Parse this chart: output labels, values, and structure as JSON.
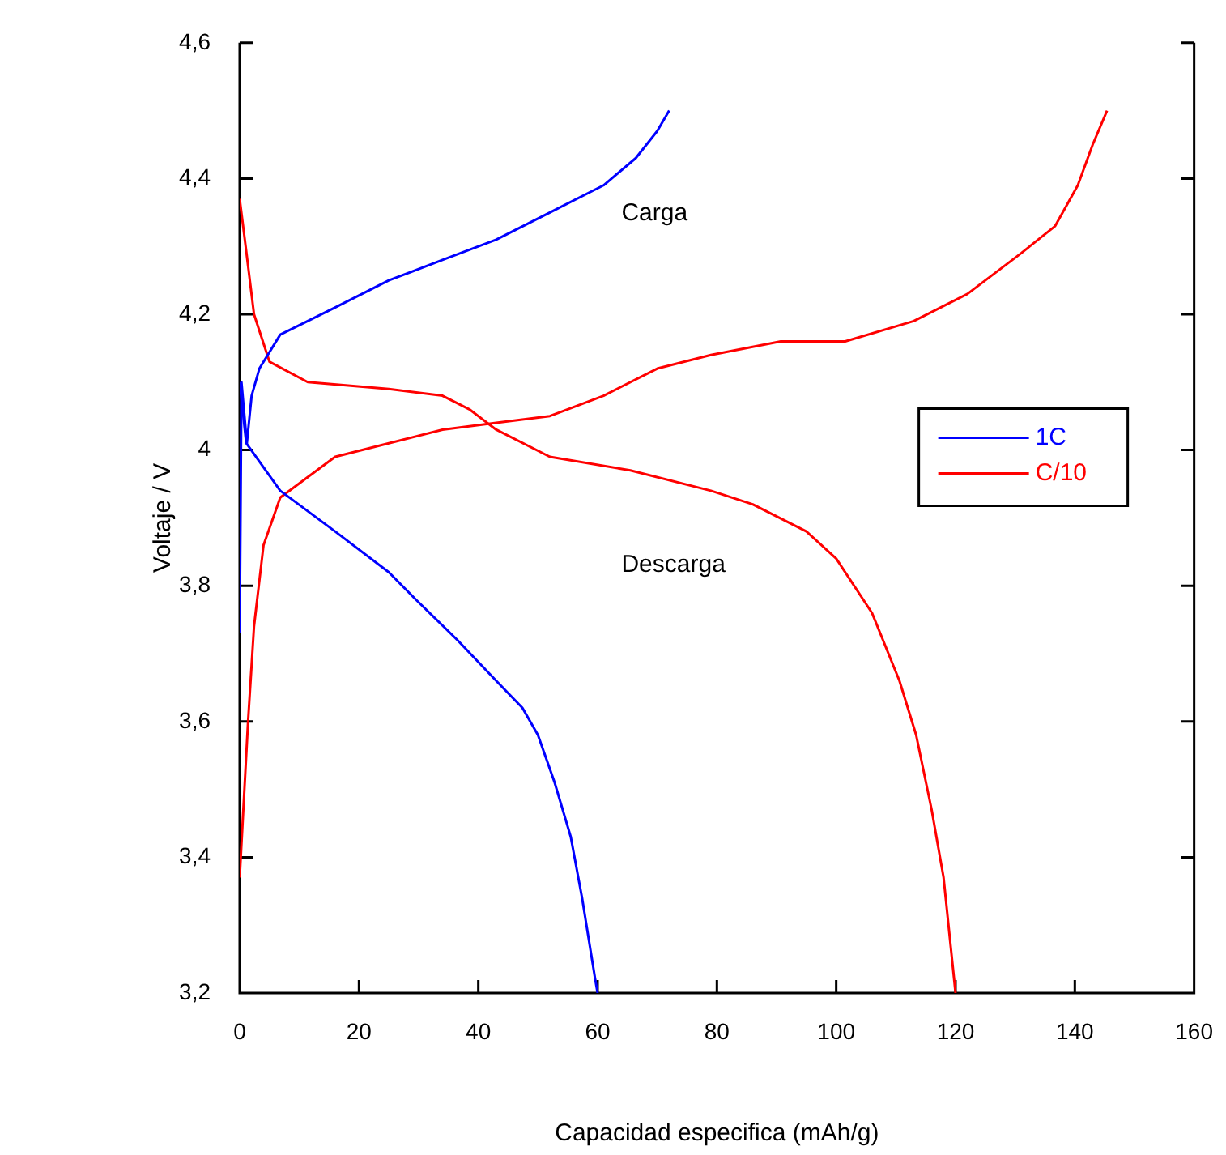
{
  "chart_data": {
    "type": "line",
    "xlabel": "Capacidad especifica (mAh/g)",
    "ylabel": "Voltaje / V",
    "annotations": [
      "Carga",
      "Descarga"
    ],
    "xlim": [
      0,
      160
    ],
    "xticks": [
      0,
      20,
      40,
      60,
      80,
      100,
      120,
      140,
      160
    ],
    "ylim": [
      3.2,
      4.6
    ],
    "yticks": [
      {
        "value": 3.2,
        "label": "3,2"
      },
      {
        "value": 3.4,
        "label": "3,4"
      },
      {
        "value": 3.6,
        "label": "3,6"
      },
      {
        "value": 3.8,
        "label": "3,8"
      },
      4,
      {
        "value": 4.2,
        "label": "4,2"
      },
      {
        "value": 4.4,
        "label": "4,4"
      },
      {
        "value": 4.6,
        "label": "4,6"
      }
    ],
    "legend": "right",
    "marker": "none",
    "line_style": "solid",
    "series": [
      {
        "name": "1C",
        "color": "#0000ff",
        "x": [
          0,
          0.3,
          1.2,
          2,
          3.3,
          6.8,
          16,
          25,
          34,
          43,
          52,
          61,
          66.4,
          70,
          72
        ],
        "values": [
          3.73,
          4.1,
          4.01,
          4.08,
          4.12,
          4.17,
          4.21,
          4.25,
          4.28,
          4.31,
          4.35,
          4.39,
          4.43,
          4.47,
          4.5
        ]
      },
      {
        "color": "#0000ff",
        "x": [
          0,
          1.1,
          6.8,
          16,
          25,
          29.5,
          36.5,
          43,
          47.4,
          50,
          52.8,
          55.5,
          57.4,
          59.6,
          60
        ],
        "values": [
          4.1,
          4.01,
          3.94,
          3.88,
          3.82,
          3.78,
          3.72,
          3.66,
          3.62,
          3.58,
          3.51,
          3.43,
          3.34,
          3.22,
          3.2
        ]
      },
      {
        "name": "C/10",
        "color": "#ff0000",
        "x": [
          0,
          1.4,
          2.4,
          4,
          6.8,
          16,
          25,
          34,
          43,
          52,
          61,
          70,
          79,
          90.7,
          101.5,
          113,
          122,
          131,
          136.7,
          140.5,
          143,
          145.4
        ],
        "values": [
          3.37,
          3.6,
          3.74,
          3.86,
          3.93,
          3.99,
          4.01,
          4.03,
          4.04,
          4.05,
          4.08,
          4.12,
          4.14,
          4.16,
          4.16,
          4.19,
          4.23,
          4.29,
          4.33,
          4.39,
          4.45,
          4.5
        ]
      },
      {
        "color": "#ff0000",
        "x": [
          0,
          1,
          2.4,
          5,
          11.4,
          25,
          34,
          38.5,
          43,
          52,
          65.5,
          79,
          86,
          95,
          100,
          106,
          110.6,
          113.4,
          116,
          118,
          120
        ],
        "values": [
          4.37,
          4.3,
          4.2,
          4.13,
          4.1,
          4.09,
          4.08,
          4.06,
          4.03,
          3.99,
          3.97,
          3.94,
          3.92,
          3.88,
          3.84,
          3.76,
          3.66,
          3.58,
          3.47,
          3.37,
          3.2
        ]
      }
    ]
  }
}
